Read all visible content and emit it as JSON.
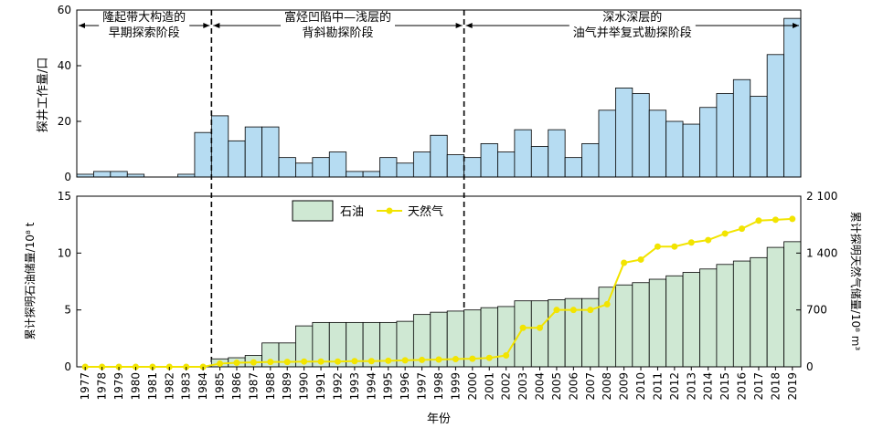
{
  "chart_data": [
    {
      "type": "bar",
      "ylabel": "探井工作量/口",
      "ylim": [
        0,
        60
      ],
      "yticks": [
        0,
        20,
        40,
        60
      ],
      "bar_color": "#b6dcf2",
      "categories": [
        "1977",
        "1978",
        "1979",
        "1980",
        "1981",
        "1982",
        "1983",
        "1984",
        "1985",
        "1986",
        "1987",
        "1988",
        "1989",
        "1990",
        "1991",
        "1992",
        "1993",
        "1994",
        "1995",
        "1996",
        "1997",
        "1998",
        "1999",
        "2000",
        "2001",
        "2002",
        "2003",
        "2004",
        "2005",
        "2006",
        "2007",
        "2008",
        "2009",
        "2010",
        "2011",
        "2012",
        "2013",
        "2014",
        "2015",
        "2016",
        "2017",
        "2018",
        "2019"
      ],
      "values": [
        1,
        2,
        2,
        1,
        0,
        0,
        1,
        16,
        22,
        13,
        18,
        18,
        7,
        5,
        7,
        9,
        2,
        2,
        7,
        5,
        9,
        15,
        8,
        7,
        12,
        9,
        17,
        11,
        17,
        7,
        12,
        24,
        32,
        30,
        24,
        20,
        19,
        25,
        30,
        35,
        29,
        44,
        57
      ],
      "stages": [
        {
          "lines": [
            "隆起带大构造的",
            "早期探索阶段"
          ],
          "from": "1977",
          "to": "1984"
        },
        {
          "lines": [
            "富烃凹陷中—浅层的",
            "背斜勘探阶段"
          ],
          "from": "1985",
          "to": "1999"
        },
        {
          "lines": [
            "深水深层的",
            "油气并举复式勘探阶段"
          ],
          "from": "2000",
          "to": "2019"
        }
      ]
    },
    {
      "type": "bar+line",
      "xlabel": "年份",
      "ylabel_left": "累计探明石油储量/10⁸ t",
      "ylabel_right": "累计探明天然气储量/10⁸ m³",
      "ylim_left": [
        0,
        15
      ],
      "yticks_left": [
        0,
        5,
        10,
        15
      ],
      "ylim_right": [
        0,
        2100
      ],
      "yticks_right": [
        "0",
        "700",
        "1 400",
        "2 100"
      ],
      "legend_position": "top-left",
      "categories": [
        "1977",
        "1978",
        "1979",
        "1980",
        "1981",
        "1982",
        "1983",
        "1984",
        "1985",
        "1986",
        "1987",
        "1988",
        "1989",
        "1990",
        "1991",
        "1992",
        "1993",
        "1994",
        "1995",
        "1996",
        "1997",
        "1998",
        "1999",
        "2000",
        "2001",
        "2002",
        "2003",
        "2004",
        "2005",
        "2006",
        "2007",
        "2008",
        "2009",
        "2010",
        "2011",
        "2012",
        "2013",
        "2014",
        "2015",
        "2016",
        "2017",
        "2018",
        "2019"
      ],
      "series": [
        {
          "name": "石油",
          "type": "bar",
          "color": "#cfe8d3",
          "values": [
            0,
            0,
            0,
            0,
            0,
            0,
            0,
            0,
            0.7,
            0.8,
            1.0,
            2.1,
            2.1,
            3.6,
            3.9,
            3.9,
            3.9,
            3.9,
            3.9,
            4.0,
            4.6,
            4.8,
            4.9,
            5.0,
            5.2,
            5.3,
            5.8,
            5.8,
            5.9,
            6.0,
            6.0,
            7.0,
            7.2,
            7.4,
            7.7,
            8.0,
            8.3,
            8.6,
            9.0,
            9.3,
            9.6,
            10.5,
            11.0
          ]
        },
        {
          "name": "天然气",
          "type": "line",
          "color": "#f2e400",
          "values": [
            0,
            0,
            0,
            0,
            0,
            0,
            0,
            0,
            40,
            50,
            55,
            60,
            60,
            65,
            65,
            65,
            70,
            70,
            75,
            80,
            85,
            90,
            95,
            100,
            110,
            140,
            480,
            480,
            700,
            700,
            700,
            770,
            1280,
            1320,
            1480,
            1480,
            1530,
            1560,
            1640,
            1700,
            1800,
            1810,
            1820
          ]
        }
      ]
    }
  ]
}
